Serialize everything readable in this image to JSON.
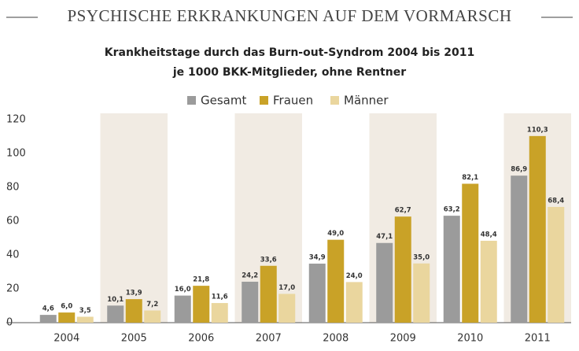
{
  "chart_data": {
    "type": "bar",
    "title": "PSYCHISCHE ERKRANKUNGEN AUF DEM VORMARSCH",
    "subtitle": [
      "Krankheitstage durch das Burn-out-Syndrom 2004 bis 2011",
      "je 1000 BKK-Mitglieder, ohne Rentner"
    ],
    "categories": [
      "2004",
      "2005",
      "2006",
      "2007",
      "2008",
      "2009",
      "2010",
      "2011"
    ],
    "series": [
      {
        "name": "Gesamt",
        "color": "#9b9b9b",
        "values": [
          4.6,
          10.1,
          16.0,
          24.2,
          34.9,
          47.1,
          63.2,
          86.9
        ],
        "value_labels": [
          "4,6",
          "10,1",
          "16,0",
          "24,2",
          "34,9",
          "47,1",
          "63,2",
          "86,9"
        ]
      },
      {
        "name": "Frauen",
        "color": "#c9a227",
        "values": [
          6.0,
          13.9,
          21.8,
          33.6,
          49.0,
          62.7,
          82.1,
          110.3
        ],
        "value_labels": [
          "6,0",
          "13,9",
          "21,8",
          "33,6",
          "49,0",
          "62,7",
          "82,1",
          "110,3"
        ]
      },
      {
        "name": "Männer",
        "color": "#ead69e",
        "values": [
          3.5,
          7.2,
          11.6,
          17.0,
          24.0,
          35.0,
          48.4,
          68.4
        ],
        "value_labels": [
          "3,5",
          "7,2",
          "11,6",
          "17,0",
          "24,0",
          "35,0",
          "48,4",
          "68,4"
        ]
      }
    ],
    "ylim": [
      0,
      120
    ],
    "yticks": [
      0,
      20,
      40,
      60,
      80,
      100,
      120
    ],
    "grid": false
  }
}
